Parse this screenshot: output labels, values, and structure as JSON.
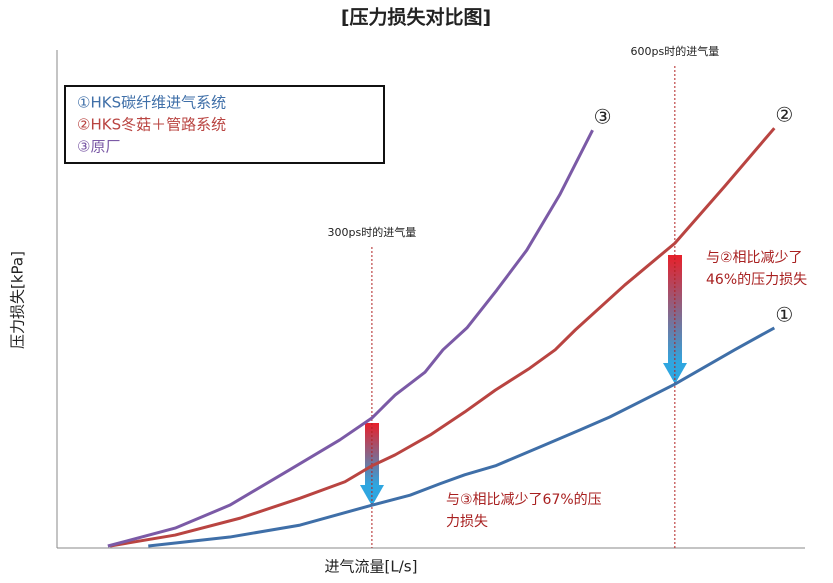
{
  "chart_data": {
    "type": "line",
    "title": "[压力损失对比图]",
    "x_label": "进气流量[L/s]",
    "y_label": "压力损失[kPa]",
    "xlim": [
      0,
      100
    ],
    "ylim": [
      0,
      100
    ],
    "series": [
      {
        "name": "①HKS碳纤维进气系统",
        "end_label": "①",
        "color": "#3f6fa8",
        "x": [
          12.2,
          23.1,
          32.5,
          42.1,
          47.2,
          51.2,
          54.5,
          58.6,
          64.6,
          69.9,
          73.9,
          82.6,
          90.6,
          95.9
        ],
        "values": [
          0.4,
          2.2,
          4.6,
          8.6,
          10.6,
          12.9,
          14.7,
          16.5,
          20.3,
          23.7,
          26.3,
          32.9,
          39.8,
          44.2
        ]
      },
      {
        "name": "②HKS冬菇＋管路系统",
        "end_label": "②",
        "color": "#b94441",
        "x": [
          7.1,
          15.8,
          24.5,
          32.5,
          38.5,
          42.1,
          45.2,
          49.9,
          54.5,
          58.6,
          63.2,
          66.6,
          69.3,
          75.9,
          82.6,
          89.3,
          95.9
        ],
        "values": [
          0.4,
          2.6,
          6.0,
          10.0,
          13.3,
          16.5,
          18.7,
          22.7,
          27.3,
          31.7,
          36.1,
          39.8,
          43.8,
          52.8,
          61.2,
          72.7,
          84.3
        ]
      },
      {
        "name": "③原厂",
        "end_label": "③",
        "color": "#7b5aa6",
        "x": [
          6.8,
          15.8,
          23.1,
          31.1,
          37.8,
          42.1,
          45.2,
          49.2,
          51.6,
          54.8,
          58.8,
          62.8,
          67.2,
          71.6
        ],
        "values": [
          0.4,
          4.0,
          8.6,
          15.7,
          21.7,
          26.1,
          30.7,
          35.3,
          39.8,
          44.2,
          51.8,
          59.8,
          70.9,
          83.9
        ]
      }
    ],
    "markers": [
      {
        "x": 42.1,
        "label": "300ps时的进气量"
      },
      {
        "x": 82.6,
        "label": "600ps时的进气量"
      }
    ],
    "annotations": [
      {
        "lines": [
          "与③相比减少了67%的压",
          "力损失"
        ]
      },
      {
        "lines": [
          "与②相比减少了",
          "46%的压力损失"
        ]
      }
    ]
  }
}
